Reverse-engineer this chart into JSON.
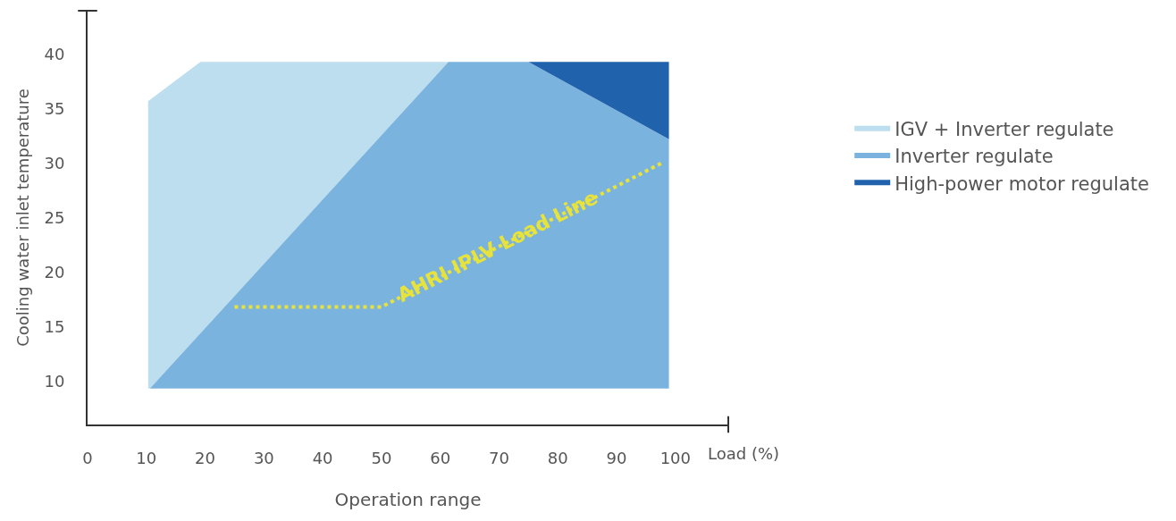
{
  "chart_data": {
    "type": "area",
    "xlabel": "Operation range",
    "ylabel": "Cooling water inlet temperature",
    "xlim": [
      0,
      109
    ],
    "ylim": [
      6,
      44
    ],
    "xticks": [
      0,
      10,
      20,
      30,
      40,
      50,
      60,
      70,
      80,
      90,
      100
    ],
    "yticks": [
      10,
      15,
      20,
      25,
      30,
      35,
      40
    ],
    "grid": false,
    "legend": "right",
    "series": [
      {
        "name": "IGV + Inverter regulate",
        "color": "#bcdeee",
        "x": [
          10.3,
          19.2,
          61.4,
          10.6,
          10.3,
          10.3
        ],
        "values": [
          35.7,
          39.3,
          39.3,
          9.3,
          9.3,
          35.7
        ]
      },
      {
        "name": "Inverter regulate",
        "color": "#7ab3de",
        "x": [
          10.6,
          61.4,
          75,
          98.9,
          98.9,
          10.6
        ],
        "values": [
          9.3,
          39.3,
          39.3,
          32.2,
          9.3,
          9.3
        ]
      },
      {
        "name": "High-power motor regulate",
        "color": "#2162ad",
        "x": [
          75,
          98.9,
          98.9,
          75
        ],
        "values": [
          39.3,
          39.3,
          32.2,
          39.3
        ]
      },
      {
        "type": "line",
        "color": "#e8e33a",
        "line_style": "dotted",
        "x": [
          25,
          50,
          98
        ],
        "values": [
          16.8,
          16.8,
          30.1
        ]
      }
    ],
    "annotations": [
      "AHRI IPLV Load Line",
      "Load (%)"
    ]
  }
}
